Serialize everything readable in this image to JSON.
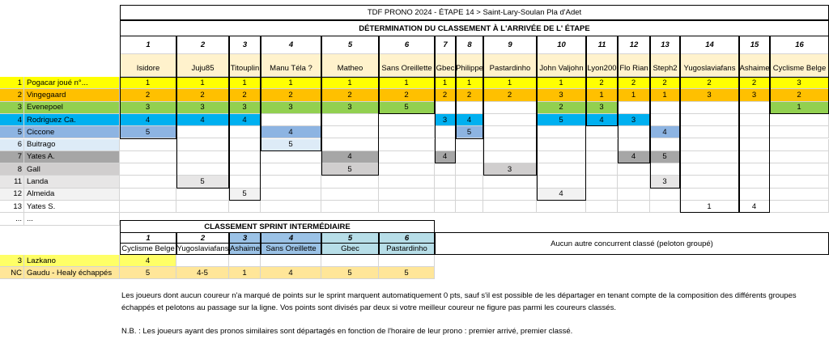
{
  "header": {
    "title": "TDF PRONO 2024  - ÉTAPE 14 > Saint-Lary-Soulan Pla d'Adet",
    "subtitle": "DÉTERMINATION DU CLASSEMENT À L'ARRIVÉE DE L' ÉTAPE"
  },
  "players": {
    "numbers": [
      1,
      2,
      3,
      4,
      5,
      6,
      7,
      8,
      9,
      10,
      11,
      12,
      13,
      14,
      15,
      16
    ],
    "names": [
      "Isidore",
      "Juju85",
      "Titouplin",
      "Manu Téla ?",
      "Matheo",
      "Sans Oreillette",
      "Gbec",
      "Philippe",
      "Pastardinho",
      "John Valjohn",
      "Lyon200",
      "Flo Rian",
      "Steph2",
      "Yugoslaviafans",
      "Ashaime",
      "Cyclisme Belge"
    ]
  },
  "riders": [
    {
      "rank": 1,
      "name": "Pogacar joué n°...",
      "picks": [
        1,
        1,
        1,
        1,
        1,
        1,
        1,
        1,
        1,
        1,
        2,
        2,
        2,
        2,
        2,
        3
      ]
    },
    {
      "rank": 2,
      "name": "Vingegaard",
      "picks": [
        2,
        2,
        2,
        2,
        2,
        2,
        2,
        2,
        2,
        3,
        1,
        1,
        1,
        3,
        3,
        2
      ]
    },
    {
      "rank": 3,
      "name": "Evenepoel",
      "picks": [
        3,
        3,
        3,
        3,
        3,
        5,
        null,
        null,
        null,
        2,
        3,
        null,
        null,
        null,
        null,
        1
      ]
    },
    {
      "rank": 4,
      "name": "Rodriguez Ca.",
      "picks": [
        4,
        4,
        4,
        null,
        null,
        null,
        3,
        4,
        null,
        5,
        4,
        3,
        null,
        null,
        null,
        null
      ]
    },
    {
      "rank": 5,
      "name": "Ciccone",
      "picks": [
        5,
        null,
        null,
        4,
        null,
        null,
        null,
        5,
        null,
        null,
        null,
        null,
        4,
        null,
        null,
        null
      ]
    },
    {
      "rank": 6,
      "name": "Buitrago",
      "picks": [
        null,
        null,
        null,
        5,
        null,
        null,
        null,
        null,
        null,
        null,
        null,
        null,
        null,
        null,
        null,
        null
      ]
    },
    {
      "rank": 7,
      "name": "Yates A.",
      "picks": [
        null,
        null,
        null,
        null,
        4,
        null,
        4,
        null,
        null,
        null,
        null,
        4,
        5,
        null,
        null,
        null
      ]
    },
    {
      "rank": 8,
      "name": "Gall",
      "picks": [
        null,
        null,
        null,
        null,
        5,
        null,
        null,
        null,
        3,
        null,
        null,
        null,
        null,
        null,
        null,
        null
      ]
    },
    {
      "rank": 11,
      "name": "Landa",
      "picks": [
        null,
        5,
        null,
        null,
        null,
        null,
        null,
        null,
        null,
        null,
        null,
        null,
        3,
        null,
        null,
        null
      ]
    },
    {
      "rank": 12,
      "name": "Almeida",
      "picks": [
        null,
        null,
        5,
        null,
        null,
        null,
        null,
        null,
        null,
        4,
        null,
        null,
        null,
        null,
        null,
        null
      ]
    },
    {
      "rank": 13,
      "name": "Yates S.",
      "picks": [
        null,
        null,
        null,
        null,
        null,
        null,
        null,
        null,
        null,
        null,
        null,
        null,
        null,
        1,
        4,
        null
      ]
    }
  ],
  "ellipsis": [
    "...",
    "..."
  ],
  "sprint": {
    "title": "CLASSEMENT SPRINT INTERMÉDIAIRE",
    "numbers": [
      1,
      2,
      3,
      4,
      5,
      6
    ],
    "names": [
      "Cyclisme Belge",
      "Yugoslaviafans",
      "Ashaime",
      "Sans Oreillette",
      "Gbec",
      "Pastardinho"
    ],
    "note": "Aucun autre concurrent classé (peloton groupé)",
    "rows": [
      {
        "rank": 3,
        "name": "Lazkano",
        "values": [
          4,
          null,
          null,
          null,
          null,
          null
        ]
      },
      {
        "rank": "NC",
        "name": "Gaudu - Healy échappés",
        "values": [
          5,
          "4-5",
          1,
          4,
          5,
          5
        ]
      }
    ]
  },
  "footer": {
    "lines": [
      "Les joueurs dont aucun coureur n'a marqué de points sur le sprint marquent automatiquement 0 pts, sauf s'il est possible de les départager en tenant compte de la composition des différents groupes",
      "échappés et pelotons au passage sur la ligne. Vos points sont divisés par deux si votre meilleur coureur ne figure pas parmi les coureurs classés.",
      "N.B. : Les joueurs ayant des pronos similaires sont départagés en fonction de l'horaire de leur prono : premier arrivé, premier classé."
    ]
  }
}
